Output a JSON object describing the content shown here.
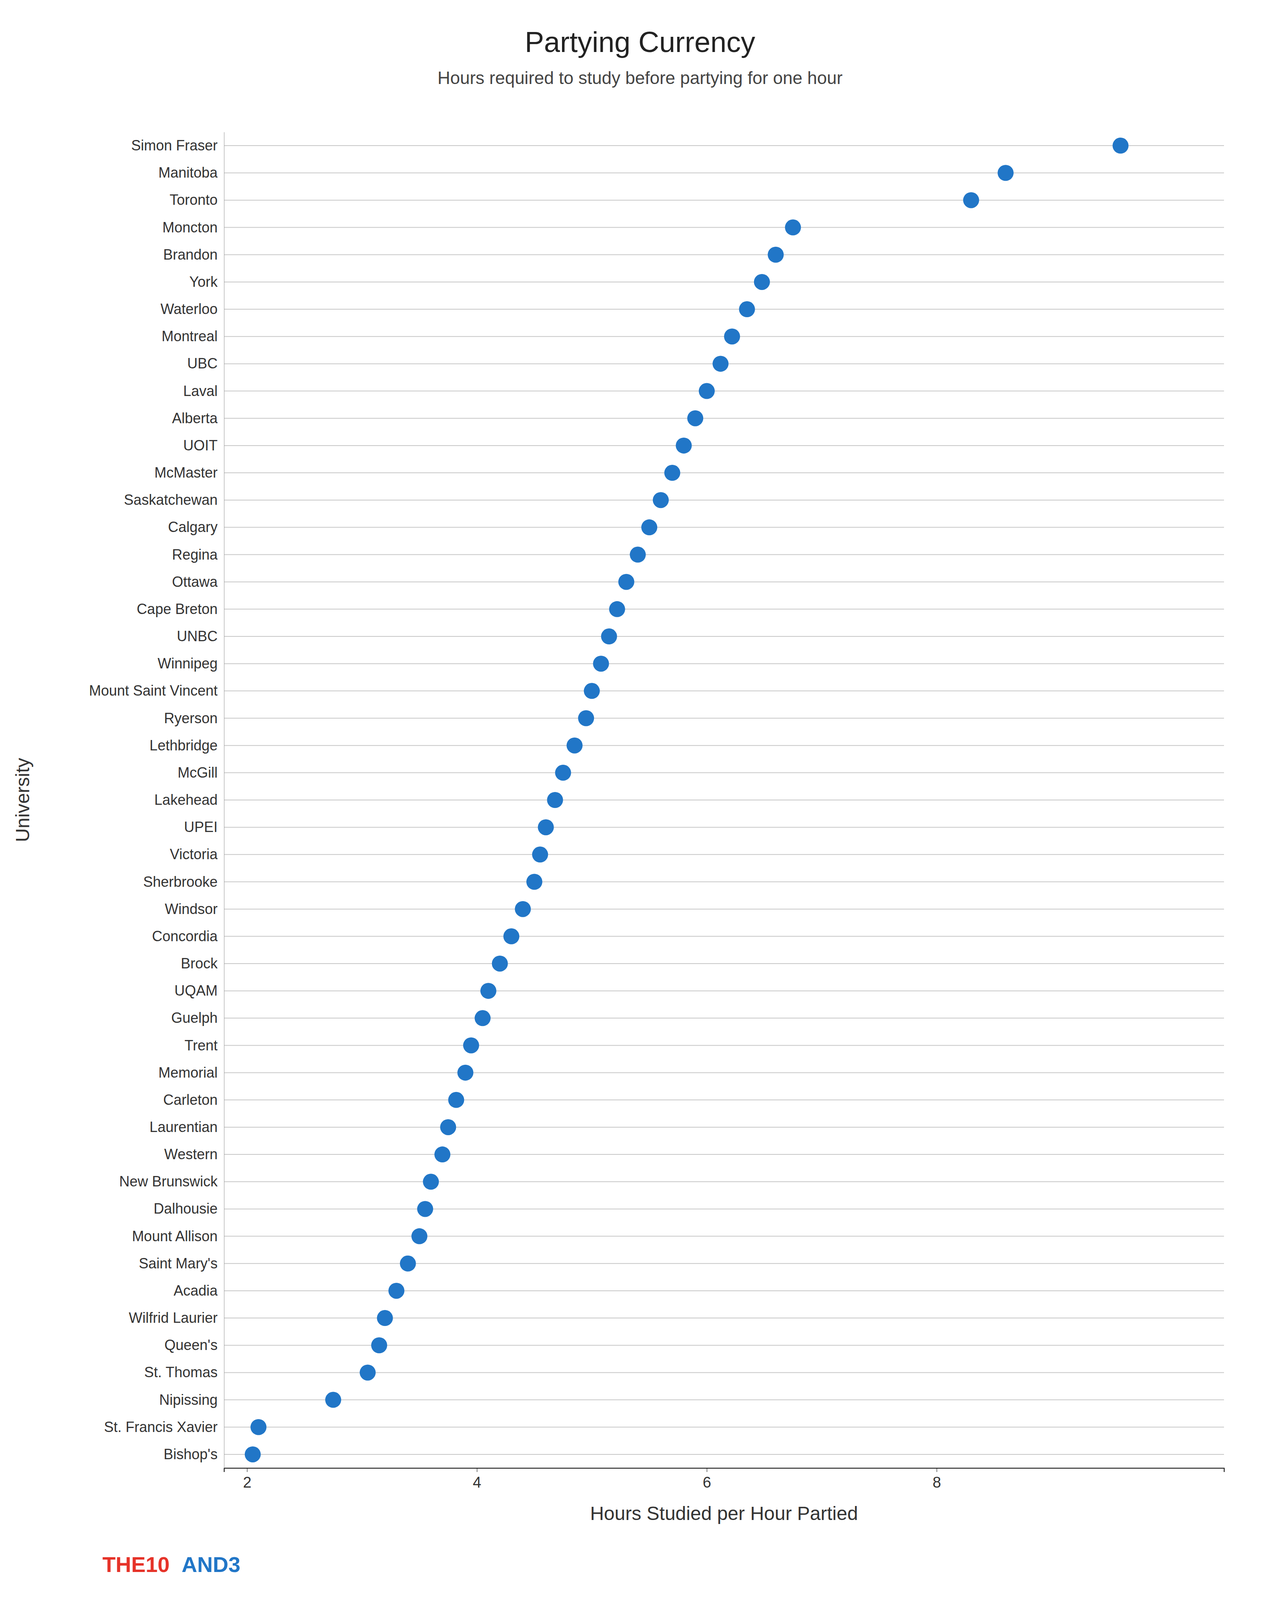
{
  "chart_data": {
    "type": "dot",
    "title": "Partying Currency",
    "subtitle": "Hours required to study before partying for one hour",
    "xlabel": "Hours Studied per Hour Partied",
    "ylabel": "University",
    "categories": [
      "Bishop's",
      "St. Francis Xavier",
      "Nipissing",
      "St. Thomas",
      "Queen's",
      "Wilfrid Laurier",
      "Acadia",
      "Saint Mary's",
      "Mount Allison",
      "Dalhousie",
      "New Brunswick",
      "Western",
      "Laurentian",
      "Carleton",
      "Memorial",
      "Trent",
      "Guelph",
      "UQAM",
      "Brock",
      "Concordia",
      "Windsor",
      "Sherbrooke",
      "Victoria",
      "UPEI",
      "Lakehead",
      "McGill",
      "Lethbridge",
      "Ryerson",
      "Mount Saint Vincent",
      "Winnipeg",
      "UNBC",
      "Cape Breton",
      "Ottawa",
      "Regina",
      "Calgary",
      "Saskatchewan",
      "McMaster",
      "UOIT",
      "Alberta",
      "Laval",
      "UBC",
      "Montreal",
      "Waterloo",
      "York",
      "Brandon",
      "Moncton",
      "Toronto",
      "Manitoba",
      "Simon Fraser"
    ],
    "values": [
      2.05,
      2.1,
      2.75,
      3.05,
      3.15,
      3.2,
      3.3,
      3.4,
      3.5,
      3.55,
      3.6,
      3.7,
      3.75,
      3.82,
      3.9,
      3.95,
      4.05,
      4.1,
      4.2,
      4.3,
      4.4,
      4.5,
      4.55,
      4.6,
      4.68,
      4.75,
      4.85,
      4.95,
      5.0,
      5.08,
      5.15,
      5.22,
      5.3,
      5.4,
      5.5,
      5.6,
      5.7,
      5.8,
      5.9,
      6.0,
      6.12,
      6.22,
      6.35,
      6.48,
      6.6,
      6.75,
      8.3,
      8.6,
      9.6
    ],
    "color": "#2176c7",
    "xlim": [
      1.8,
      10.5
    ],
    "xticks": [
      2,
      4,
      6,
      8
    ],
    "grid": true,
    "annotations": [
      {
        "text": "THE10",
        "color": "#e63329"
      },
      {
        "text": "AND3",
        "color": "#2176c7"
      }
    ]
  }
}
